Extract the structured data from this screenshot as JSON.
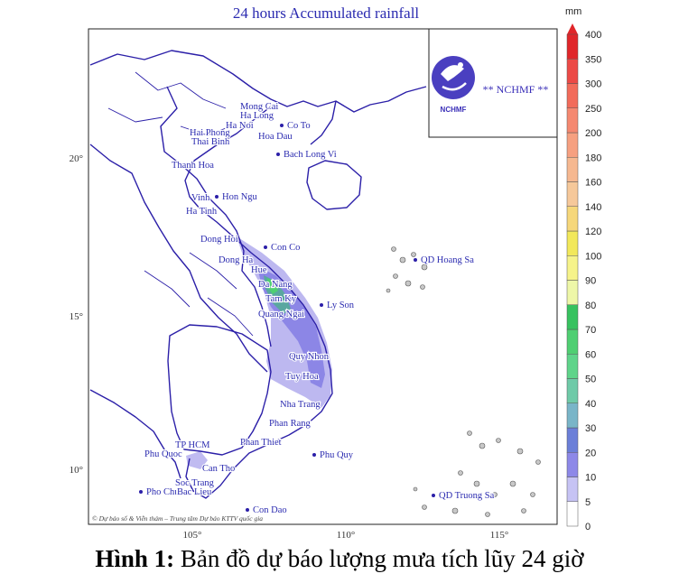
{
  "map": {
    "title": "24 hours Accumulated rainfall",
    "credit": "© Dự báo số & Viễn thám – Trung tâm Dự báo KTTV quốc gia",
    "lat_labels": [
      "20°",
      "15°",
      "10°"
    ],
    "lon_labels": [
      "105°",
      "110°",
      "115°"
    ],
    "logo": {
      "org_text": "** NCHMF **",
      "badge_text": "NCHMF"
    },
    "places": [
      "Mong Cai",
      "Ha Long",
      "Ha Noi",
      "Co To",
      "Hai Phong",
      "Hoa Dau",
      "Thai Binh",
      "Bach Long Vi",
      "Thanh Hoa",
      "Vinh",
      "Hon Ngu",
      "Ha Tinh",
      "Dong Hoi",
      "Con Co",
      "Dong Ha",
      "Hue",
      "Da Nang",
      "Tam Ky",
      "Ly Son",
      "Quang Ngai",
      "QD Hoang Sa",
      "Quy Nhon",
      "Tuy Hoa",
      "Nha Trang",
      "Phan Rang",
      "Phan Thiet",
      "TP HCM",
      "Phu Quoc",
      "Can Tho",
      "Phu Quy",
      "Soc Trang",
      "Pho Chu",
      "Bac Lieu",
      "Con Dao",
      "QD Truong Sa"
    ],
    "colors": {
      "border": "#2b1fa8",
      "rain_light": "#b9b4ef",
      "rain_mid": "#8c86e6",
      "rain_heavy": "#5aa7a0",
      "rain_peak": "#4fcf72"
    }
  },
  "colorbar": {
    "unit": "mm",
    "ticks": [
      "0",
      "5",
      "10",
      "20",
      "30",
      "40",
      "50",
      "60",
      "70",
      "80",
      "90",
      "100",
      "120",
      "140",
      "160",
      "180",
      "200",
      "250",
      "300",
      "350",
      "400"
    ],
    "colors": [
      "#ffffff",
      "#c6c3f4",
      "#8d88e8",
      "#6b7fd8",
      "#79b5c8",
      "#6fcaa8",
      "#5fd48a",
      "#4fcf72",
      "#37c25f",
      "#eef7a8",
      "#f6f38a",
      "#f2e85a",
      "#f6d77a",
      "#f6c89a",
      "#f6b890",
      "#f6a080",
      "#f58870",
      "#f26b5a",
      "#ec4a46",
      "#e0262a"
    ]
  },
  "caption": {
    "bold": "Hình 1:",
    "text": " Bản đồ dự báo lượng mưa tích lũy 24 giờ"
  }
}
